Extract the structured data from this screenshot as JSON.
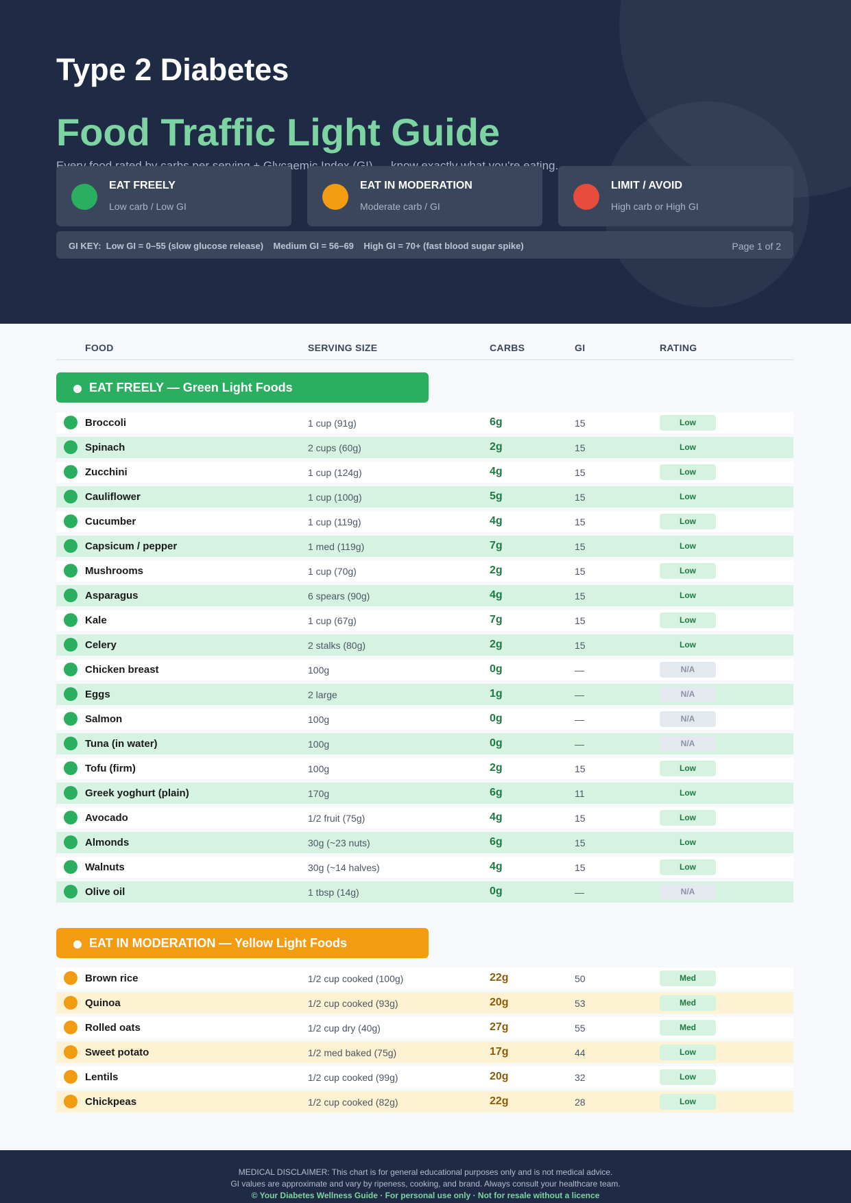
{
  "header": {
    "title": "Type 2 Diabetes",
    "subtitle_big": "Food Traffic Light Guide",
    "tagline": "Every food rated by carbs per serving + Glycaemic Index (GI) — know exactly what you're eating."
  },
  "legend": [
    {
      "title": "EAT FREELY",
      "sub": "Low carb / Low GI",
      "color": "#2aae5f"
    },
    {
      "title": "EAT IN MODERATION",
      "sub": "Moderate carb / GI",
      "color": "#f39c12"
    },
    {
      "title": "LIMIT / AVOID",
      "sub": "High carb or High GI",
      "color": "#e74c3c"
    }
  ],
  "gi_key": {
    "text": "GI KEY:  Low GI = 0–55 (slow glucose release)    Medium GI = 56–69    High GI = 70+ (fast blood sugar spike)",
    "page": "Page 1 of 2"
  },
  "columns": {
    "food": "FOOD",
    "serving": "SERVING SIZE",
    "carbs": "CARBS",
    "gi": "GI",
    "rating": "RATING"
  },
  "sections": [
    {
      "title": "EAT FREELY — Green Light Foods",
      "color": "#2aae5f",
      "stripe": "#d6f3e1",
      "carb_color": "#1e7a44",
      "items": [
        {
          "name": "Broccoli",
          "serving": "1 cup (91g)",
          "carbs": "6g",
          "gi": "15",
          "rating": "Low"
        },
        {
          "name": "Spinach",
          "serving": "2 cups (60g)",
          "carbs": "2g",
          "gi": "15",
          "rating": "Low"
        },
        {
          "name": "Zucchini",
          "serving": "1 cup (124g)",
          "carbs": "4g",
          "gi": "15",
          "rating": "Low"
        },
        {
          "name": "Cauliflower",
          "serving": "1 cup (100g)",
          "carbs": "5g",
          "gi": "15",
          "rating": "Low"
        },
        {
          "name": "Cucumber",
          "serving": "1 cup (119g)",
          "carbs": "4g",
          "gi": "15",
          "rating": "Low"
        },
        {
          "name": "Capsicum / pepper",
          "serving": "1 med (119g)",
          "carbs": "7g",
          "gi": "15",
          "rating": "Low"
        },
        {
          "name": "Mushrooms",
          "serving": "1 cup (70g)",
          "carbs": "2g",
          "gi": "15",
          "rating": "Low"
        },
        {
          "name": "Asparagus",
          "serving": "6 spears (90g)",
          "carbs": "4g",
          "gi": "15",
          "rating": "Low"
        },
        {
          "name": "Kale",
          "serving": "1 cup (67g)",
          "carbs": "7g",
          "gi": "15",
          "rating": "Low"
        },
        {
          "name": "Celery",
          "serving": "2 stalks (80g)",
          "carbs": "2g",
          "gi": "15",
          "rating": "Low"
        },
        {
          "name": "Chicken breast",
          "serving": "100g",
          "carbs": "0g",
          "gi": "—",
          "rating": "N/A"
        },
        {
          "name": "Eggs",
          "serving": "2 large",
          "carbs": "1g",
          "gi": "—",
          "rating": "N/A"
        },
        {
          "name": "Salmon",
          "serving": "100g",
          "carbs": "0g",
          "gi": "—",
          "rating": "N/A"
        },
        {
          "name": "Tuna (in water)",
          "serving": "100g",
          "carbs": "0g",
          "gi": "—",
          "rating": "N/A"
        },
        {
          "name": "Tofu (firm)",
          "serving": "100g",
          "carbs": "2g",
          "gi": "15",
          "rating": "Low"
        },
        {
          "name": "Greek yoghurt (plain)",
          "serving": "170g",
          "carbs": "6g",
          "gi": "11",
          "rating": "Low"
        },
        {
          "name": "Avocado",
          "serving": "1/2 fruit (75g)",
          "carbs": "4g",
          "gi": "15",
          "rating": "Low"
        },
        {
          "name": "Almonds",
          "serving": "30g (~23 nuts)",
          "carbs": "6g",
          "gi": "15",
          "rating": "Low"
        },
        {
          "name": "Walnuts",
          "serving": "30g (~14 halves)",
          "carbs": "4g",
          "gi": "15",
          "rating": "Low"
        },
        {
          "name": "Olive oil",
          "serving": "1 tbsp (14g)",
          "carbs": "0g",
          "gi": "—",
          "rating": "N/A"
        }
      ]
    },
    {
      "title": "EAT IN MODERATION — Yellow Light Foods",
      "color": "#f39c12",
      "stripe": "#fdf3d3",
      "carb_color": "#8a5b0b",
      "items": [
        {
          "name": "Brown rice",
          "serving": "1/2 cup cooked (100g)",
          "carbs": "22g",
          "gi": "50",
          "rating": "Med"
        },
        {
          "name": "Quinoa",
          "serving": "1/2 cup cooked (93g)",
          "carbs": "20g",
          "gi": "53",
          "rating": "Med"
        },
        {
          "name": "Rolled oats",
          "serving": "1/2 cup dry (40g)",
          "carbs": "27g",
          "gi": "55",
          "rating": "Med"
        },
        {
          "name": "Sweet potato",
          "serving": "1/2 med baked (75g)",
          "carbs": "17g",
          "gi": "44",
          "rating": "Low"
        },
        {
          "name": "Lentils",
          "serving": "1/2 cup cooked (99g)",
          "carbs": "20g",
          "gi": "32",
          "rating": "Low"
        },
        {
          "name": "Chickpeas",
          "serving": "1/2 cup cooked (82g)",
          "carbs": "22g",
          "gi": "28",
          "rating": "Low"
        }
      ]
    }
  ],
  "badge_colors": {
    "Low": {
      "bg": "#d6f3e1",
      "fg": "#1e7a44"
    },
    "Med": {
      "bg": "#d6f3e1",
      "fg": "#1e7a44"
    },
    "N/A": {
      "bg": "#e4e8ef",
      "fg": "#8a93a3"
    }
  },
  "footer": {
    "line1": "MEDICAL DISCLAIMER: This chart is for general educational purposes only and is not medical advice.",
    "line2": "GI values are approximate and vary by ripeness, cooking, and brand. Always consult your healthcare team.",
    "line3": "© Your Diabetes Wellness Guide  ·  For personal use only  ·  Not for resale without a licence"
  }
}
